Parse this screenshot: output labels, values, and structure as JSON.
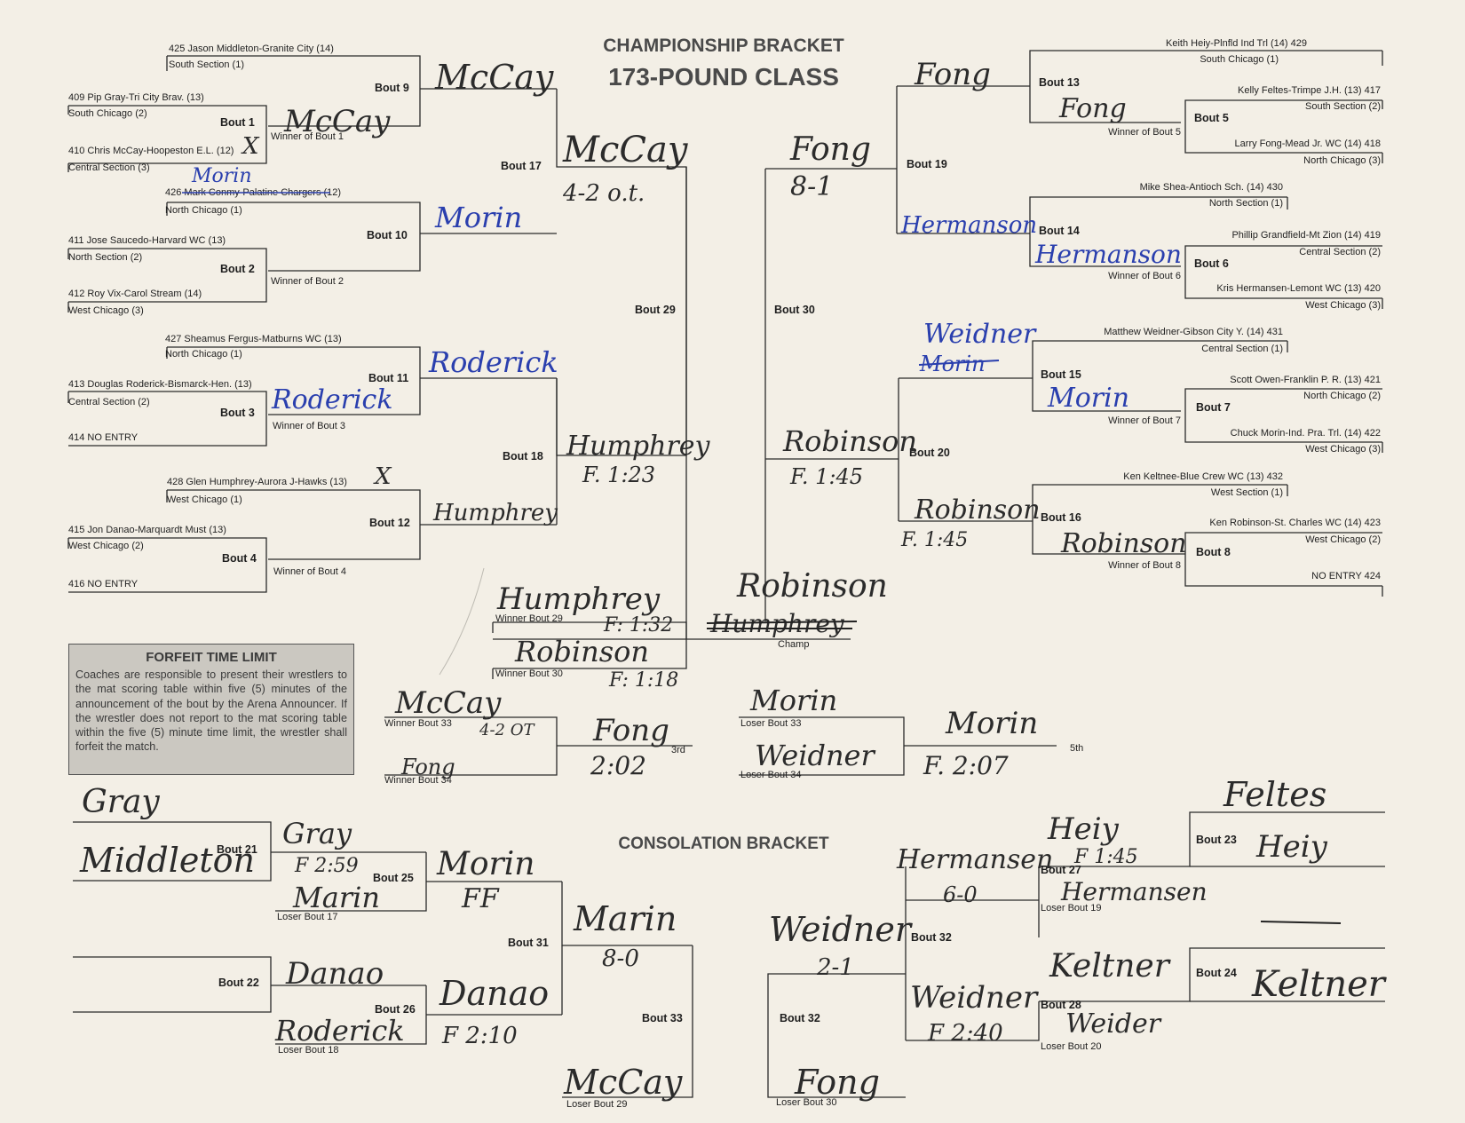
{
  "header": {
    "title_line1": "CHAMPIONSHIP BRACKET",
    "title_line2": "173-POUND CLASS",
    "consolation_title": "CONSOLATION BRACKET"
  },
  "forfeit": {
    "title": "FORFEIT TIME LIMIT",
    "body": "Coaches are responsible to present their wrestlers to the mat scoring table within five (5) minutes of the announcement of the bout by the Arena Announcer. If the wrestler does not report to the mat scoring table within the five (5) minute time limit, the wrestler shall forfeit the match."
  },
  "left_entries": [
    {
      "name": "425  Jason Middleton-Granite City (14)",
      "section": "South Section (1)"
    },
    {
      "name": "409  Pip Gray-Tri City Brav.  (13)",
      "section": "South Chicago (2)"
    },
    {
      "name": "410  Chris McCay-Hoopeston E.L. (12)",
      "section": "Central Section (3)"
    },
    {
      "name": "426  Mark Conmy-Palatine Chargers (12)",
      "section": "North Chicago (1)"
    },
    {
      "name": "411  Jose Saucedo-Harvard WC (13)",
      "section": "North Section (2)"
    },
    {
      "name": "412  Roy Vix-Carol Stream  (14)",
      "section": "West Chicago  (3)"
    },
    {
      "name": "427  Sheamus Fergus-Matburns WC (13)",
      "section": "North Chicago (1)"
    },
    {
      "name": "413  Douglas Roderick-Bismarck-Hen. (13)",
      "section": "Central Section (2)"
    },
    {
      "name": "414  NO ENTRY",
      "section": ""
    },
    {
      "name": "428  Glen Humphrey-Aurora J-Hawks (13)",
      "section": "West Chicago (1)"
    },
    {
      "name": "415  Jon Danao-Marquardt Must  (13)",
      "section": "West Chicago (2)"
    },
    {
      "name": "416  NO ENTRY",
      "section": ""
    }
  ],
  "right_entries": [
    {
      "name": "Keith Heiy-Plnfld Ind Trl (14) 429",
      "section": "South Chicago (1)"
    },
    {
      "name": "Kelly Feltes-Trimpe J.H. (13) 417",
      "section": "South Section (2)"
    },
    {
      "name": "Larry Fong-Mead Jr. WC (14) 418",
      "section": "North Chicago (3)"
    },
    {
      "name": "Mike Shea-Antioch Sch. (14) 430",
      "section": "North Section (1)"
    },
    {
      "name": "Phillip Grandfield-Mt Zion (14) 419",
      "section": "Central Section (2)"
    },
    {
      "name": "Kris Hermansen-Lemont WC (13) 420",
      "section": "West Chicago (3)"
    },
    {
      "name": "Matthew Weidner-Gibson City Y. (14) 431",
      "section": "Central Section (1)"
    },
    {
      "name": "Scott Owen-Franklin P. R. (13) 421",
      "section": "North Chicago (2)"
    },
    {
      "name": "Chuck Morin-Ind. Pra. Trl. (14) 422",
      "section": "West Chicago (3)"
    },
    {
      "name": "Ken Keltnee-Blue Crew WC (13) 432",
      "section": "West Section (1)"
    },
    {
      "name": "Ken Robinson-St. Charles WC (14) 423",
      "section": "West Chicago (2)"
    },
    {
      "name": "NO ENTRY 424",
      "section": ""
    }
  ],
  "bouts": {
    "b1": "Bout 1",
    "b2": "Bout 2",
    "b3": "Bout 3",
    "b4": "Bout 4",
    "b5": "Bout 5",
    "b6": "Bout 6",
    "b7": "Bout 7",
    "b8": "Bout 8",
    "b9": "Bout 9",
    "b10": "Bout 10",
    "b11": "Bout 11",
    "b12": "Bout 12",
    "b13": "Bout 13",
    "b14": "Bout 14",
    "b15": "Bout 15",
    "b16": "Bout 16",
    "b17": "Bout 17",
    "b18": "Bout 18",
    "b19": "Bout 19",
    "b20": "Bout 20",
    "b21": "Bout 21",
    "b22": "Bout 22",
    "b23": "Bout 23",
    "b24": "Bout 24",
    "b25": "Bout 25",
    "b26": "Bout 26",
    "b27": "Bout 27",
    "b28": "Bout 28",
    "b29": "Bout 29",
    "b30": "Bout 30",
    "b31": "Bout 31",
    "b32a": "Bout 32",
    "b32b": "Bout 32",
    "b33": "Bout 33"
  },
  "sublabels": {
    "w1": "Winner of Bout 1",
    "w2": "Winner of Bout 2",
    "w3": "Winner of Bout 3",
    "w4": "Winner of Bout 4",
    "w5": "Winner of Bout 5",
    "w6": "Winner of Bout 6",
    "w7": "Winner of Bout 7",
    "w8": "Winner of Bout 8",
    "w29": "Winner Bout 29",
    "w30": "Winner Bout 30",
    "champ": "Champ",
    "w33": "Winner Bout 33",
    "w34": "Winner Bout 34",
    "third": "3rd",
    "l33": "Loser Bout 33",
    "l34": "Loser Bout 34",
    "fifth": "5th",
    "l17": "Loser Bout 17",
    "l18": "Loser Bout 18",
    "l19": "Loser Bout 19",
    "l20": "Loser Bout 20",
    "l29": "Loser Bout 29",
    "l30": "Loser Bout 30"
  },
  "handwriting": {
    "mccay_b1": "McCay",
    "mccay_b9": "McCay",
    "mccay_b17": "McCay",
    "score_b17": "4-2 o.t.",
    "morin_above": "Morin",
    "morin_b10": "Morin",
    "roderick_b3": "Roderick",
    "roderick_b11": "Roderick",
    "humphrey_b12": "Humphrey",
    "humphrey_b18": "Humphrey",
    "time_b18": "F. 1:23",
    "fong_b13": "Fong",
    "fong_b5": "Fong",
    "fong_b19": "Fong",
    "score_b19": "8-1",
    "hermanson_b19": "Hermanson",
    "hermanson_b6": "Hermanson",
    "weidner_b15": "Weidner",
    "morin_struck": "Morin",
    "morin_b7": "Morin",
    "robinson_b20": "Robinson",
    "time_b20": "F. 1:45",
    "robinson_b16": "Robinson",
    "robinson_b8": "Robinson",
    "time_b16": "F. 1:45",
    "humphrey_final": "Humphrey",
    "time_final1": "F: 1:32",
    "robinson_final": "Robinson",
    "time_final2": "F: 1:18",
    "robinson_champ": "Robinson",
    "humphrey_struck": "Humphrey",
    "mccay_3rd": "McCay",
    "score_3rd": "4-2 OT",
    "fong_3rd": "Fong",
    "fong_result": "Fong",
    "time_3rd": "2:02",
    "morin_5th": "Morin",
    "weidner_5th": "Weidner",
    "morin_result": "Morin",
    "time_5th": "F. 2:07",
    "gray": "Gray",
    "middleton": "Middleton",
    "gray_b21": "Gray",
    "time_b21": "F 2:59",
    "marin_b25": "Marin",
    "morin_b25": "Morin",
    "ff": "FF",
    "marin_b31": "Marin",
    "score_b31": "8-0",
    "danao_b22": "Danao",
    "roderick_b26": "Roderick",
    "danao_b26": "Danao",
    "time_b26": "F 2:10",
    "mccay_b33": "McCay",
    "feltes": "Feltes",
    "heiy_b23": "Heiy",
    "heiy_b27": "Heiy",
    "time_b27": "F 1:45",
    "hermansen_b27": "Hermansen",
    "score_b27": "6-0",
    "hermansen_l19": "Hermansen",
    "weidner_b32": "Weidner",
    "score_b32": "2-1",
    "weidner_b28": "Weidner",
    "time_b28": "F 2:40",
    "weider_l20": "Weider",
    "keltner_b28": "Keltner",
    "keltner_b24": "Keltner",
    "fong_b32": "Fong",
    "x1": "X",
    "x2": "X"
  }
}
